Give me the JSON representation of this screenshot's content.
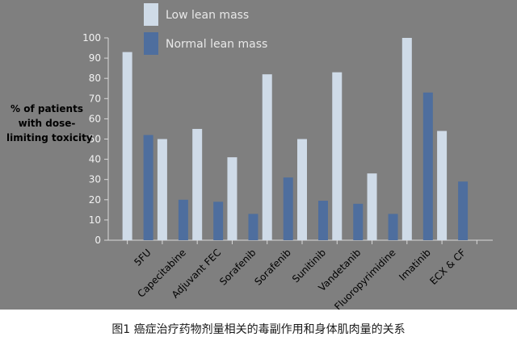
{
  "caption": "图1  癌症治疗药物剂量相关的毒副作用和身体肌肉量的关系",
  "colors": {
    "background": "#7f7f7f",
    "low_lean_mass": "#cfdbe8",
    "normal_lean_mass": "#4e6e9e",
    "axis": "#d9d9d9",
    "tick_text": "#f2f2f2",
    "category_text": "#000000"
  },
  "chart_data": {
    "type": "bar",
    "ylabel_lines": [
      "% of patients",
      "with dose-",
      "limiting toxicity"
    ],
    "categories": [
      "5FU",
      "Capecitabine",
      "Adjuvant FEC",
      "Sorafenib",
      "Sorafenib",
      "Sunitinib",
      "Vandetanib",
      "Fluoropyrimidine",
      "Imatinib",
      "ECX & CF"
    ],
    "series": [
      {
        "name": "Low lean mass",
        "values": [
          93,
          50,
          55,
          41,
          82,
          50,
          83,
          33,
          100,
          54
        ]
      },
      {
        "name": "Normal lean mass",
        "values": [
          52,
          20,
          19,
          13,
          31,
          19.5,
          18,
          13,
          73,
          29
        ]
      }
    ],
    "ylim": [
      0,
      100
    ],
    "yticks": [
      0,
      10,
      20,
      30,
      40,
      50,
      60,
      70,
      80,
      90,
      100
    ],
    "grid": false,
    "legend_position": "top"
  }
}
